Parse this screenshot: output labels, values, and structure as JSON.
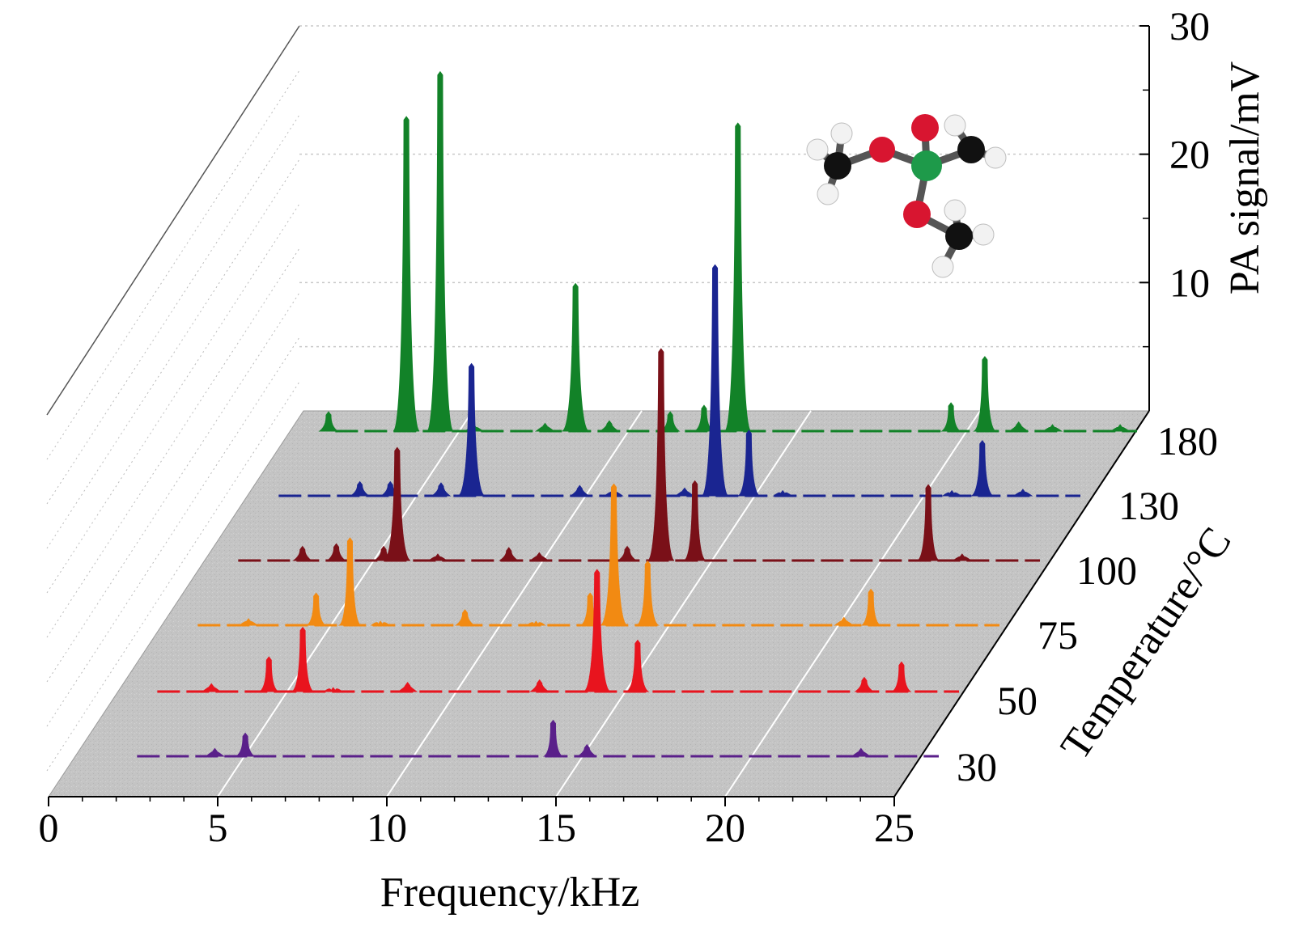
{
  "chart_data": {
    "type": "waterfall",
    "xlabel": "Frequency/kHz",
    "ylabel": "Temperature/°C",
    "zlabel": "PA signal/mV",
    "x_range": [
      0,
      25
    ],
    "x_ticks": [
      "0",
      "5",
      "10",
      "15",
      "20",
      "25"
    ],
    "z_range": [
      0,
      30
    ],
    "z_ticks": [
      "10",
      "20",
      "30"
    ],
    "y_categories": [
      "30",
      "50",
      "75",
      "100",
      "130",
      "180"
    ],
    "grid": true,
    "series": [
      {
        "temperature": "30",
        "color": "#5a1f8a",
        "peaks": [
          [
            3.6,
            0.6
          ],
          [
            4.5,
            1.8
          ],
          [
            13.6,
            2.8
          ],
          [
            14.6,
            0.9
          ],
          [
            22.7,
            0.6
          ]
        ]
      },
      {
        "temperature": "50",
        "color": "#e8141e",
        "peaks": [
          [
            2.9,
            0.6
          ],
          [
            4.6,
            2.7
          ],
          [
            5.6,
            5.0
          ],
          [
            6.5,
            0.3
          ],
          [
            8.7,
            0.7
          ],
          [
            12.6,
            0.9
          ],
          [
            14.3,
            9.5
          ],
          [
            15.5,
            4.0
          ],
          [
            22.2,
            1.1
          ],
          [
            23.3,
            2.3
          ]
        ]
      },
      {
        "temperature": "75",
        "color": "#f28a12",
        "peaks": [
          [
            2.8,
            0.5
          ],
          [
            4.8,
            2.5
          ],
          [
            5.8,
            6.8
          ],
          [
            6.7,
            0.3
          ],
          [
            9.2,
            1.2
          ],
          [
            11.3,
            0.3
          ],
          [
            12.9,
            2.5
          ],
          [
            13.6,
            11.0
          ],
          [
            14.6,
            5.0
          ],
          [
            20.4,
            0.6
          ],
          [
            21.2,
            2.8
          ]
        ]
      },
      {
        "temperature": "100",
        "color": "#7a1018",
        "peaks": [
          [
            3.2,
            1.1
          ],
          [
            4.2,
            1.3
          ],
          [
            5.6,
            1.1
          ],
          [
            6.0,
            8.8
          ],
          [
            7.2,
            0.5
          ],
          [
            9.3,
            1.0
          ],
          [
            10.2,
            0.6
          ],
          [
            12.8,
            1.1
          ],
          [
            13.8,
            16.5
          ],
          [
            14.8,
            6.2
          ],
          [
            21.7,
            5.9
          ],
          [
            22.7,
            0.5
          ]
        ]
      },
      {
        "temperature": "130",
        "color": "#1a2591",
        "peaks": [
          [
            3.7,
            1.1
          ],
          [
            4.6,
            1.1
          ],
          [
            6.1,
            1.0
          ],
          [
            7.0,
            10.3
          ],
          [
            10.2,
            0.8
          ],
          [
            11.2,
            0.5
          ],
          [
            13.3,
            0.6
          ],
          [
            14.2,
            18.0
          ],
          [
            15.2,
            5.1
          ],
          [
            16.2,
            0.4
          ],
          [
            21.2,
            0.4
          ],
          [
            22.1,
            4.3
          ],
          [
            23.3,
            0.5
          ]
        ]
      },
      {
        "temperature": "180",
        "color": "#128228",
        "peaks": [
          [
            1.1,
            1.5
          ],
          [
            3.4,
            24.5
          ],
          [
            4.4,
            28.0
          ],
          [
            5.4,
            0.5
          ],
          [
            7.5,
            0.6
          ],
          [
            8.4,
            11.5
          ],
          [
            9.4,
            0.8
          ],
          [
            11.2,
            1.5
          ],
          [
            12.2,
            2.0
          ],
          [
            13.2,
            24.0
          ],
          [
            19.5,
            2.2
          ],
          [
            20.5,
            5.8
          ],
          [
            21.5,
            0.7
          ],
          [
            22.5,
            0.5
          ],
          [
            24.5,
            0.5
          ]
        ]
      }
    ]
  }
}
